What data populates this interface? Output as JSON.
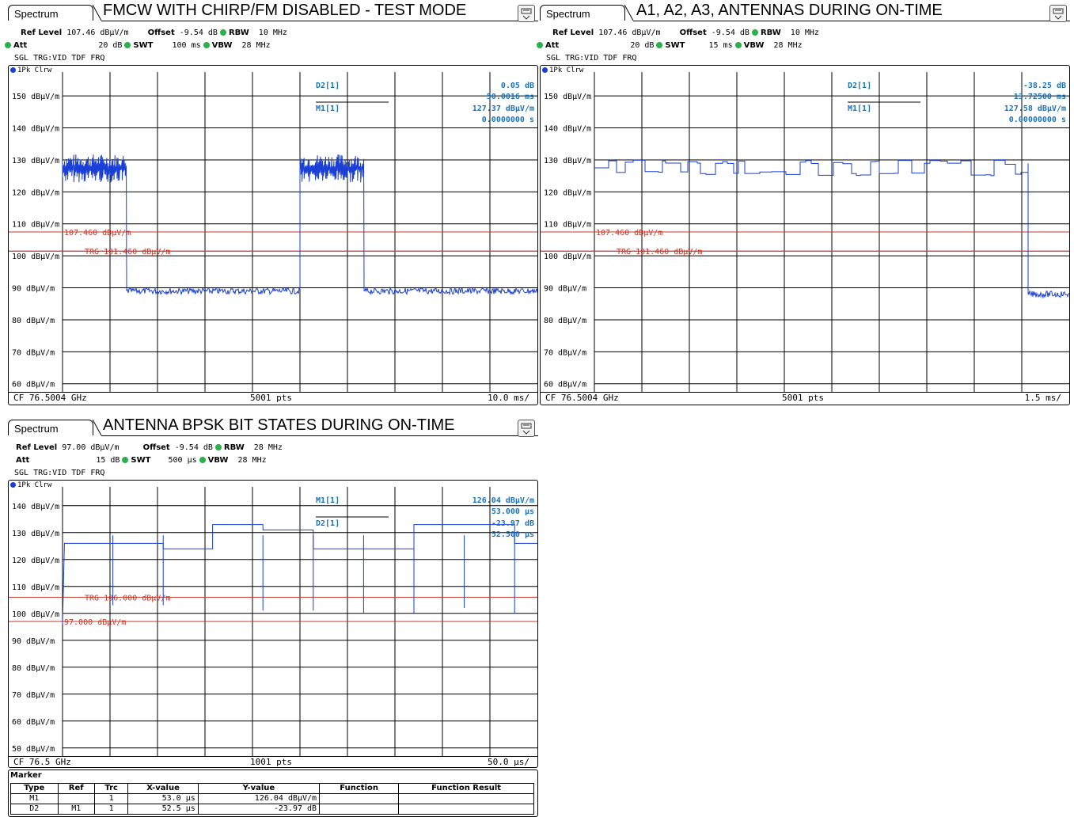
{
  "panels": [
    {
      "tab": "Spectrum",
      "title": "FMCW WITH CHIRP/FM DISABLED - TEST MODE",
      "ref_level": "107.46 dBµV/m",
      "offset": "-9.54 dB",
      "rbw": "10 MHz",
      "att": "20 dB",
      "swt": "100 ms",
      "vbw": "28 MHz",
      "trigger": "SGL TRG:VID TDF FRQ",
      "trace": "1Pk Clrw",
      "cf": "CF 76.5004 GHz",
      "pts": "5001 pts",
      "div": "10.0 ms/",
      "markers": [
        {
          "name": "D2[1]",
          "value": "0.05 dB",
          "value2": "50.0016 ms"
        },
        {
          "name": "M1[1]",
          "value": "127.37 dBµV/m",
          "value2": "0.0000000 s"
        }
      ],
      "line_labels": [
        "107.460 dBµV/m",
        "TRG  101.460 dBµV/m"
      ]
    },
    {
      "tab": "Spectrum",
      "title": "A1, A2, A3, ANTENNAS DURING ON-TIME",
      "ref_level": "107.46 dBµV/m",
      "offset": "-9.54 dB",
      "rbw": "10 MHz",
      "att": "20 dB",
      "swt": "15 ms",
      "vbw": "28 MHz",
      "trigger": "SGL TRG:VID TDF FRQ",
      "trace": "1Pk Clrw",
      "cf": "CF 76.5004 GHz",
      "pts": "5001 pts",
      "div": "1.5 ms/",
      "markers": [
        {
          "name": "D2[1]",
          "value": "-38.25 dB",
          "value2": "13.72500 ms"
        },
        {
          "name": "M1[1]",
          "value": "127.58 dBµV/m",
          "value2": "0.00000000 s"
        }
      ],
      "line_labels": [
        "107.460 dBµV/m",
        "TRG  101.460 dBµV/m"
      ]
    },
    {
      "tab": "Spectrum",
      "title": "ANTENNA BPSK BIT STATES DURING ON-TIME",
      "ref_level": "97.00 dBµV/m",
      "offset": "-9.54 dB",
      "rbw": "28 MHz",
      "att": "15 dB",
      "swt": "500 µs",
      "vbw": "28 MHz",
      "trigger": "SGL TRG:VID TDF FRQ",
      "trace": "1Pk Clrw",
      "cf": "CF 76.5 GHz",
      "pts": "1001 pts",
      "div": "50.0 µs/",
      "markers": [
        {
          "name": "M1[1]",
          "value": "126.04 dBµV/m",
          "value2": "53.000 µs"
        },
        {
          "name": "D2[1]",
          "value": "-23.97 dB",
          "value2": "52.500 µs"
        }
      ],
      "line_labels": [
        "TRG  106.000 dBµV/m",
        "97.000 dBµV/m"
      ]
    }
  ],
  "labels": {
    "ref_level": "Ref Level",
    "offset": "Offset",
    "rbw": "RBW",
    "att": "Att",
    "swt": "SWT",
    "vbw": "VBW"
  },
  "marker_table": {
    "title": "Marker",
    "headers": [
      "Type",
      "Ref",
      "Trc",
      "X-value",
      "Y-value",
      "Function",
      "Function Result"
    ],
    "rows": [
      [
        "M1",
        "",
        "1",
        "53.0 µs",
        "126.04 dBµV/m",
        "",
        ""
      ],
      [
        "D2",
        "M1",
        "1",
        "52.5 µs",
        "-23.97 dB",
        "",
        ""
      ]
    ]
  },
  "chart_data": [
    {
      "type": "line",
      "title": "FMCW WITH CHIRP/FM DISABLED - TEST MODE",
      "xlabel": "Time (10.0 ms/div)",
      "ylabel": "dBµV/m",
      "xlim": [
        0,
        100
      ],
      "ylim": [
        57.46,
        157.46
      ],
      "y_ticks": [
        "150 dBµV/m",
        "140 dBµV/m",
        "130 dBµV/m",
        "120 dBµV/m",
        "110 dBµV/m",
        "100 dBµV/m",
        "90 dBµV/m",
        "80 dBµV/m",
        "70 dBµV/m",
        "60 dBµV/m"
      ],
      "y_tick_values": [
        150,
        140,
        130,
        120,
        110,
        100,
        90,
        80,
        70,
        60
      ],
      "hlines": [
        107.46,
        101.46
      ],
      "segments": [
        {
          "x0": 0,
          "x1": 13.5,
          "level": 127.4,
          "kind": "burst"
        },
        {
          "x0": 13.5,
          "x1": 50,
          "level": 89,
          "kind": "noise"
        },
        {
          "x0": 50,
          "x1": 63.5,
          "level": 127.4,
          "kind": "burst"
        },
        {
          "x0": 63.5,
          "x1": 100,
          "level": 89,
          "kind": "noise"
        }
      ]
    },
    {
      "type": "line",
      "title": "A1, A2, A3, ANTENNAS DURING ON-TIME",
      "xlabel": "Time (1.5 ms/div)",
      "ylabel": "dBµV/m",
      "xlim": [
        0,
        15
      ],
      "ylim": [
        57.46,
        157.46
      ],
      "y_ticks": [
        "150 dBµV/m",
        "140 dBµV/m",
        "130 dBµV/m",
        "120 dBµV/m",
        "110 dBµV/m",
        "100 dBµV/m",
        "90 dBµV/m",
        "80 dBµV/m",
        "70 dBµV/m",
        "60 dBµV/m"
      ],
      "y_tick_values": [
        150,
        140,
        130,
        120,
        110,
        100,
        90,
        80,
        70,
        60
      ],
      "hlines": [
        107.46,
        101.46
      ],
      "segments": [
        {
          "x0": 0,
          "x1": 13.7,
          "level": 127.5,
          "kind": "bits"
        },
        {
          "x0": 13.7,
          "x1": 15,
          "level": 88,
          "kind": "noise"
        }
      ]
    },
    {
      "type": "line",
      "title": "ANTENNA BPSK BIT STATES DURING ON-TIME",
      "xlabel": "Time (50.0 µs/div)",
      "ylabel": "dBµV/m",
      "xlim": [
        0,
        500
      ],
      "ylim": [
        47,
        147
      ],
      "y_ticks": [
        "140 dBµV/m",
        "130 dBµV/m",
        "120 dBµV/m",
        "110 dBµV/m",
        "100 dBµV/m",
        "90 dBµV/m",
        "80 dBµV/m",
        "70 dBµV/m",
        "60 dBµV/m",
        "50 dBµV/m"
      ],
      "y_tick_values": [
        140,
        130,
        120,
        110,
        100,
        90,
        80,
        70,
        60,
        50
      ],
      "hlines": [
        106,
        97
      ],
      "steps": [
        [
          0,
          96
        ],
        [
          2,
          126
        ],
        [
          53,
          126
        ],
        [
          106,
          126
        ],
        [
          106,
          124
        ],
        [
          158,
          124
        ],
        [
          158,
          133
        ],
        [
          211,
          133
        ],
        [
          211,
          131
        ],
        [
          264,
          131
        ],
        [
          264,
          124
        ],
        [
          317,
          124
        ],
        [
          317,
          124
        ],
        [
          370,
          124
        ],
        [
          370,
          133
        ],
        [
          423,
          133
        ],
        [
          423,
          133
        ],
        [
          476,
          133
        ],
        [
          476,
          126
        ],
        [
          500,
          126
        ]
      ],
      "dips": [
        [
          53,
          103
        ],
        [
          106,
          103
        ],
        [
          211,
          101
        ],
        [
          264,
          101
        ],
        [
          317,
          100
        ],
        [
          370,
          100
        ],
        [
          423,
          102
        ],
        [
          476,
          100
        ]
      ]
    }
  ]
}
